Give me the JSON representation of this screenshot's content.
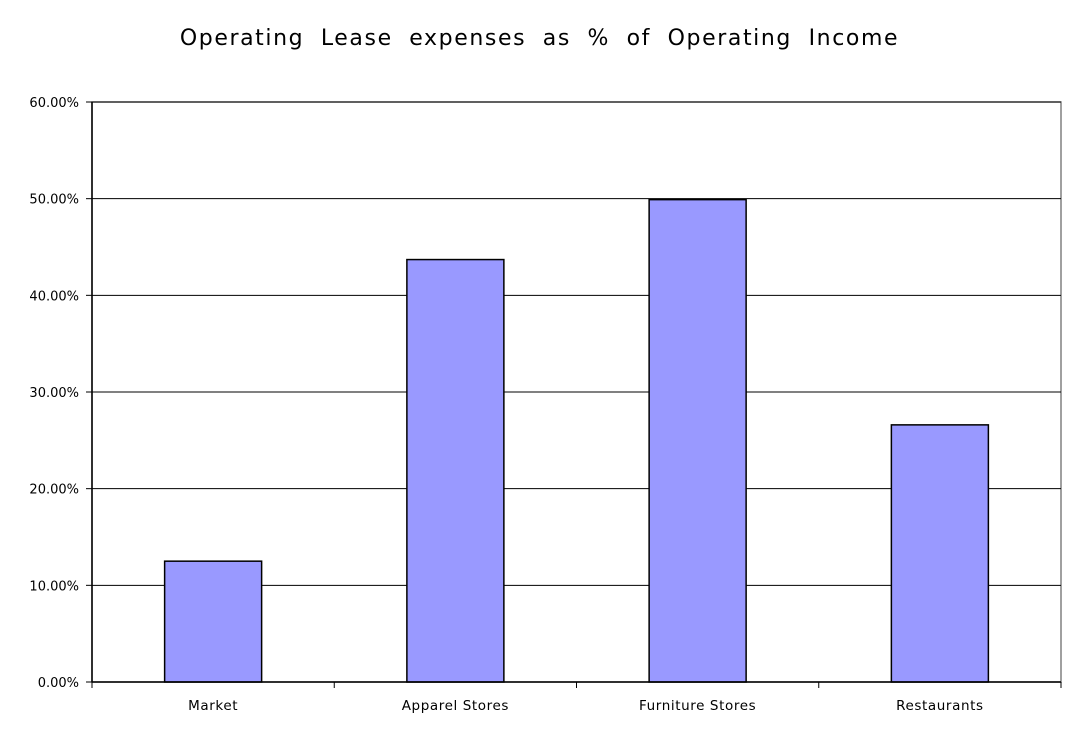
{
  "chart_data": {
    "type": "bar",
    "title": "Operating Lease expenses as % of Operating Income",
    "xlabel": "",
    "ylabel": "",
    "categories": [
      "Market",
      "Apparel Stores",
      "Furniture Stores",
      "Restaurants"
    ],
    "values": [
      12.5,
      43.7,
      49.9,
      26.6
    ],
    "yticks": [
      "0.00%",
      "10.00%",
      "20.00%",
      "30.00%",
      "40.00%",
      "50.00%",
      "60.00%"
    ],
    "ylim": [
      0,
      60
    ],
    "grid": true,
    "legend": "none",
    "colors": {
      "bar_fill": "#9999ff",
      "bar_stroke": "#000000",
      "grid": "#000000",
      "plot_border": "#808080"
    }
  }
}
